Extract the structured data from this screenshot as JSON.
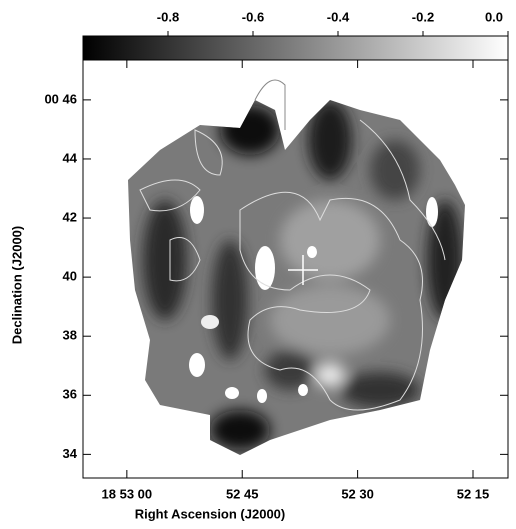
{
  "chart_data": {
    "type": "image",
    "xlabel": "Right Ascension  (J2000)",
    "ylabel": "Declination (J2000)",
    "xlim": [
      65.7,
      10.45
    ],
    "xticks": [
      {
        "value": 60,
        "label": "18 53 00"
      },
      {
        "value": 45,
        "label": "52 45"
      },
      {
        "value": 30,
        "label": "52 30"
      },
      {
        "value": 15,
        "label": "52 15"
      }
    ],
    "ylim": [
      33.2,
      47.35
    ],
    "yticks": [
      {
        "value": 46,
        "label": "00 46"
      },
      44,
      42,
      40,
      38,
      36,
      34
    ],
    "clim": [
      -1.0,
      0.0
    ],
    "cticks": [
      -0.8,
      -0.6,
      -0.4,
      -0.2,
      {
        "value": 0,
        "label": "0.0"
      }
    ],
    "colormap": [
      "#000000",
      "#ffffff"
    ]
  }
}
